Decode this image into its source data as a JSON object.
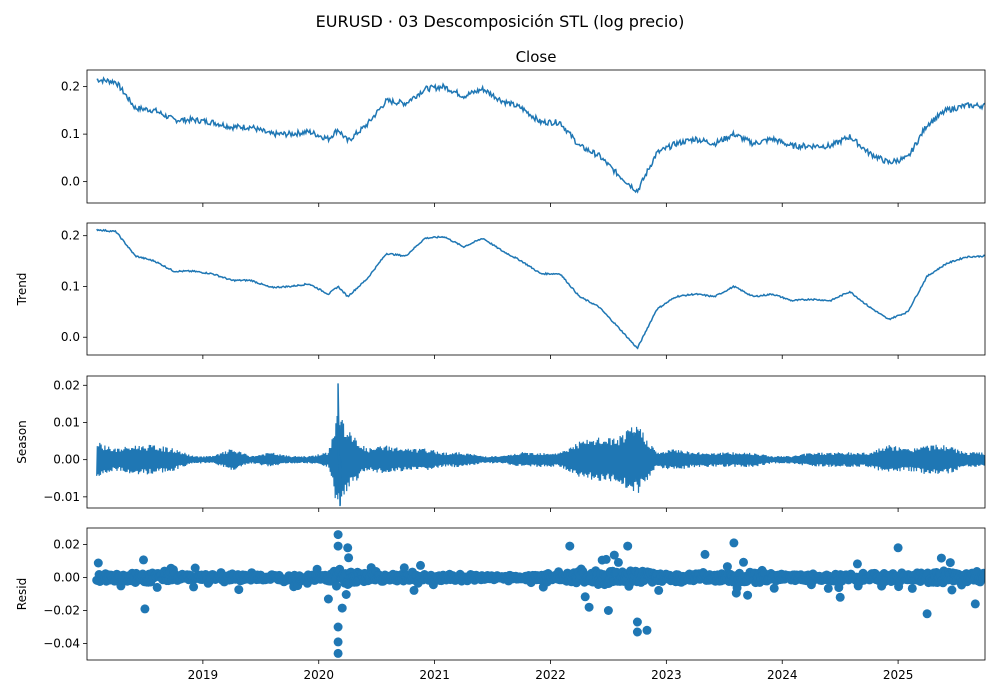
{
  "figure": {
    "suptitle": "EURUSD · 03 Descomposición STL (log precio)"
  },
  "colors": {
    "line": "#1f77b4",
    "axis": "#000000"
  },
  "chart_data": [
    {
      "type": "line",
      "title": "Close",
      "ylabel": "",
      "ylim": [
        -0.045,
        0.235
      ],
      "yticks": [
        0.0,
        0.1,
        0.2
      ],
      "ytick_labels": [
        "0.0",
        "0.1",
        "0.2"
      ],
      "x": [
        "2018-02",
        "2018-04",
        "2018-06",
        "2018-08",
        "2018-10",
        "2018-12",
        "2019-02",
        "2019-04",
        "2019-06",
        "2019-08",
        "2019-10",
        "2019-12",
        "2020-02",
        "2020-03",
        "2020-04",
        "2020-06",
        "2020-08",
        "2020-10",
        "2020-12",
        "2021-02",
        "2021-04",
        "2021-06",
        "2021-08",
        "2021-10",
        "2021-12",
        "2022-02",
        "2022-04",
        "2022-06",
        "2022-08",
        "2022-10",
        "2022-12",
        "2023-02",
        "2023-04",
        "2023-06",
        "2023-08",
        "2023-10",
        "2023-12",
        "2024-02",
        "2024-04",
        "2024-06",
        "2024-08",
        "2024-10",
        "2024-12",
        "2025-02",
        "2025-04",
        "2025-06",
        "2025-08",
        "2025-10"
      ],
      "values": [
        0.215,
        0.21,
        0.155,
        0.15,
        0.13,
        0.13,
        0.125,
        0.115,
        0.115,
        0.1,
        0.1,
        0.105,
        0.09,
        0.11,
        0.085,
        0.12,
        0.17,
        0.165,
        0.195,
        0.2,
        0.18,
        0.195,
        0.17,
        0.155,
        0.125,
        0.125,
        0.075,
        0.055,
        0.015,
        -0.02,
        0.06,
        0.08,
        0.09,
        0.08,
        0.1,
        0.08,
        0.09,
        0.075,
        0.075,
        0.075,
        0.095,
        0.06,
        0.04,
        0.05,
        0.12,
        0.15,
        0.16,
        0.16
      ]
    },
    {
      "type": "line",
      "title": "",
      "ylabel": "Trend",
      "ylim": [
        -0.035,
        0.225
      ],
      "yticks": [
        0.0,
        0.1,
        0.2
      ],
      "ytick_labels": [
        "0.0",
        "0.1",
        "0.2"
      ],
      "x": [
        "2018-02",
        "2018-04",
        "2018-06",
        "2018-08",
        "2018-10",
        "2018-12",
        "2019-02",
        "2019-04",
        "2019-06",
        "2019-08",
        "2019-10",
        "2019-12",
        "2020-02",
        "2020-03",
        "2020-04",
        "2020-06",
        "2020-08",
        "2020-10",
        "2020-12",
        "2021-02",
        "2021-04",
        "2021-06",
        "2021-08",
        "2021-10",
        "2021-12",
        "2022-02",
        "2022-04",
        "2022-06",
        "2022-08",
        "2022-10",
        "2022-12",
        "2023-02",
        "2023-04",
        "2023-06",
        "2023-08",
        "2023-10",
        "2023-12",
        "2024-02",
        "2024-04",
        "2024-06",
        "2024-08",
        "2024-10",
        "2024-12",
        "2025-02",
        "2025-04",
        "2025-06",
        "2025-08",
        "2025-10"
      ],
      "values": [
        0.212,
        0.208,
        0.16,
        0.15,
        0.13,
        0.13,
        0.125,
        0.112,
        0.112,
        0.098,
        0.1,
        0.105,
        0.085,
        0.1,
        0.08,
        0.115,
        0.165,
        0.16,
        0.195,
        0.198,
        0.178,
        0.195,
        0.17,
        0.15,
        0.125,
        0.125,
        0.08,
        0.06,
        0.02,
        -0.022,
        0.055,
        0.08,
        0.085,
        0.08,
        0.1,
        0.08,
        0.085,
        0.072,
        0.075,
        0.072,
        0.09,
        0.06,
        0.035,
        0.05,
        0.12,
        0.145,
        0.158,
        0.16
      ]
    },
    {
      "type": "line",
      "title": "",
      "ylabel": "Season",
      "ylim": [
        -0.013,
        0.0225
      ],
      "yticks": [
        -0.01,
        0.0,
        0.01,
        0.02
      ],
      "ytick_labels": [
        "−0.01",
        "0.00",
        "0.01",
        "0.02"
      ],
      "x": [
        "2018-02",
        "2018-04",
        "2018-06",
        "2018-08",
        "2018-10",
        "2018-12",
        "2019-02",
        "2019-04",
        "2019-06",
        "2019-08",
        "2019-10",
        "2019-12",
        "2020-02",
        "2020-03",
        "2020-04",
        "2020-06",
        "2020-08",
        "2020-10",
        "2020-12",
        "2021-02",
        "2021-04",
        "2021-06",
        "2021-08",
        "2021-10",
        "2021-12",
        "2022-02",
        "2022-04",
        "2022-06",
        "2022-08",
        "2022-10",
        "2022-12",
        "2023-02",
        "2023-04",
        "2023-06",
        "2023-08",
        "2023-10",
        "2023-12",
        "2024-02",
        "2024-04",
        "2024-06",
        "2024-08",
        "2024-10",
        "2024-12",
        "2025-02",
        "2025-04",
        "2025-06",
        "2025-08",
        "2025-10"
      ],
      "amplitude": [
        0.005,
        0.003,
        0.004,
        0.004,
        0.003,
        0.001,
        0.001,
        0.003,
        0.001,
        0.002,
        0.001,
        0.001,
        0.002,
        0.014,
        0.008,
        0.003,
        0.004,
        0.003,
        0.003,
        0.002,
        0.002,
        0.001,
        0.001,
        0.002,
        0.002,
        0.002,
        0.005,
        0.006,
        0.006,
        0.01,
        0.002,
        0.003,
        0.002,
        0.002,
        0.002,
        0.002,
        0.001,
        0.001,
        0.002,
        0.002,
        0.002,
        0.002,
        0.004,
        0.003,
        0.004,
        0.004,
        0.002,
        0.002
      ],
      "peak": {
        "x": "2020-03",
        "y": 0.0205,
        "min": -0.0125
      }
    },
    {
      "type": "scatter",
      "title": "",
      "ylabel": "Resid",
      "ylim": [
        -0.05,
        0.03
      ],
      "yticks": [
        -0.04,
        -0.02,
        0.0,
        0.02
      ],
      "ytick_labels": [
        "−0.04",
        "−0.02",
        "0.00",
        "0.02"
      ],
      "x": [
        "2018-02",
        "2018-04",
        "2018-06",
        "2018-08",
        "2018-10",
        "2018-12",
        "2019-02",
        "2019-04",
        "2019-06",
        "2019-08",
        "2019-10",
        "2019-12",
        "2020-02",
        "2020-03",
        "2020-04",
        "2020-06",
        "2020-08",
        "2020-10",
        "2020-12",
        "2021-02",
        "2021-04",
        "2021-06",
        "2021-08",
        "2021-10",
        "2021-12",
        "2022-02",
        "2022-04",
        "2022-06",
        "2022-08",
        "2022-10",
        "2022-12",
        "2023-02",
        "2023-04",
        "2023-06",
        "2023-08",
        "2023-10",
        "2023-12",
        "2024-02",
        "2024-04",
        "2024-06",
        "2024-08",
        "2024-10",
        "2024-12",
        "2025-02",
        "2025-04",
        "2025-06",
        "2025-08",
        "2025-10"
      ],
      "spread": [
        0.012,
        0.01,
        0.015,
        0.012,
        0.01,
        0.008,
        0.008,
        0.01,
        0.008,
        0.008,
        0.008,
        0.008,
        0.01,
        0.026,
        0.02,
        0.01,
        0.012,
        0.01,
        0.01,
        0.008,
        0.01,
        0.006,
        0.006,
        0.006,
        0.008,
        0.008,
        0.018,
        0.02,
        0.02,
        0.02,
        0.012,
        0.012,
        0.01,
        0.01,
        0.012,
        0.015,
        0.01,
        0.008,
        0.01,
        0.01,
        0.01,
        0.012,
        0.014,
        0.012,
        0.015,
        0.015,
        0.012,
        0.012
      ],
      "outliers": [
        {
          "x": "2020-03",
          "y": 0.026
        },
        {
          "x": "2020-03",
          "y": -0.046
        },
        {
          "x": "2020-03",
          "y": -0.039
        },
        {
          "x": "2020-03",
          "y": -0.03
        },
        {
          "x": "2020-03",
          "y": 0.019
        },
        {
          "x": "2020-04",
          "y": 0.018
        },
        {
          "x": "2020-02",
          "y": -0.013
        },
        {
          "x": "2022-03",
          "y": 0.019
        },
        {
          "x": "2022-09",
          "y": 0.019
        },
        {
          "x": "2022-10",
          "y": -0.033
        },
        {
          "x": "2022-10",
          "y": -0.027
        },
        {
          "x": "2022-11",
          "y": -0.032
        },
        {
          "x": "2022-07",
          "y": -0.02
        },
        {
          "x": "2023-08",
          "y": 0.021
        },
        {
          "x": "2025-01",
          "y": 0.018
        },
        {
          "x": "2018-07",
          "y": -0.019
        },
        {
          "x": "2025-04",
          "y": -0.022
        },
        {
          "x": "2025-09",
          "y": -0.016
        },
        {
          "x": "2022-05",
          "y": -0.018
        },
        {
          "x": "2023-05",
          "y": 0.014
        },
        {
          "x": "2024-07",
          "y": -0.012
        }
      ]
    }
  ],
  "xticks": [
    "2019",
    "2020",
    "2021",
    "2022",
    "2023",
    "2024",
    "2025"
  ],
  "xtick_dates": [
    "2019-01",
    "2020-01",
    "2021-01",
    "2022-01",
    "2023-01",
    "2024-01",
    "2025-01"
  ],
  "xlim": [
    "2018-01",
    "2025-10"
  ]
}
